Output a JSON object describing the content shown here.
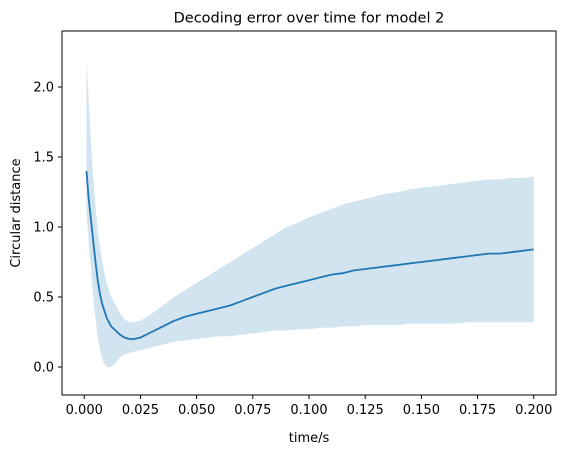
{
  "chart_data": {
    "type": "line",
    "title": "Decoding error over time for model 2",
    "xlabel": "time/s",
    "ylabel": "Circular distance",
    "xlim": [
      -0.0099,
      0.2099
    ],
    "ylim": [
      -0.2,
      2.4
    ],
    "xticks": [
      0.0,
      0.025,
      0.05,
      0.075,
      0.1,
      0.125,
      0.15,
      0.175,
      0.2
    ],
    "xtick_labels": [
      "0.000",
      "0.025",
      "0.050",
      "0.075",
      "0.100",
      "0.125",
      "0.150",
      "0.175",
      "0.200"
    ],
    "yticks": [
      0.0,
      0.5,
      1.0,
      1.5,
      2.0
    ],
    "ytick_labels": [
      "0.0",
      "0.5",
      "1.0",
      "1.5",
      "2.0"
    ],
    "grid": false,
    "line_color": "#1f77b4",
    "band_color": "#1f77b4",
    "band_opacity": 0.2,
    "series": [
      {
        "x": [
          0.001,
          0.002,
          0.003,
          0.004,
          0.005,
          0.006,
          0.007,
          0.008,
          0.009,
          0.01,
          0.012,
          0.014,
          0.016,
          0.018,
          0.02,
          0.022,
          0.025,
          0.03,
          0.035,
          0.04,
          0.045,
          0.05,
          0.055,
          0.06,
          0.065,
          0.07,
          0.075,
          0.08,
          0.085,
          0.09,
          0.095,
          0.1,
          0.105,
          0.11,
          0.115,
          0.12,
          0.125,
          0.13,
          0.135,
          0.14,
          0.145,
          0.15,
          0.155,
          0.16,
          0.165,
          0.17,
          0.175,
          0.18,
          0.185,
          0.19,
          0.195,
          0.2
        ],
        "y": [
          1.4,
          1.2,
          1.05,
          0.9,
          0.75,
          0.62,
          0.52,
          0.45,
          0.4,
          0.35,
          0.29,
          0.26,
          0.23,
          0.21,
          0.2,
          0.2,
          0.21,
          0.25,
          0.29,
          0.33,
          0.36,
          0.38,
          0.4,
          0.42,
          0.44,
          0.47,
          0.5,
          0.53,
          0.56,
          0.58,
          0.6,
          0.62,
          0.64,
          0.66,
          0.67,
          0.69,
          0.7,
          0.71,
          0.72,
          0.73,
          0.74,
          0.75,
          0.76,
          0.77,
          0.78,
          0.79,
          0.8,
          0.81,
          0.81,
          0.82,
          0.83,
          0.84
        ],
        "y_lower": [
          1.1,
          0.9,
          0.7,
          0.5,
          0.35,
          0.22,
          0.12,
          0.06,
          0.02,
          0.0,
          0.0,
          0.03,
          0.07,
          0.09,
          0.1,
          0.11,
          0.12,
          0.14,
          0.16,
          0.18,
          0.19,
          0.2,
          0.21,
          0.22,
          0.22,
          0.23,
          0.24,
          0.25,
          0.26,
          0.26,
          0.27,
          0.27,
          0.28,
          0.28,
          0.29,
          0.29,
          0.3,
          0.3,
          0.3,
          0.3,
          0.31,
          0.31,
          0.31,
          0.31,
          0.31,
          0.32,
          0.32,
          0.32,
          0.32,
          0.32,
          0.32,
          0.32
        ],
        "y_upper": [
          2.2,
          1.9,
          1.6,
          1.35,
          1.15,
          0.98,
          0.85,
          0.75,
          0.67,
          0.6,
          0.5,
          0.44,
          0.38,
          0.34,
          0.32,
          0.32,
          0.33,
          0.38,
          0.44,
          0.5,
          0.55,
          0.6,
          0.65,
          0.7,
          0.75,
          0.8,
          0.85,
          0.9,
          0.95,
          1.0,
          1.03,
          1.07,
          1.1,
          1.13,
          1.16,
          1.18,
          1.2,
          1.22,
          1.24,
          1.25,
          1.27,
          1.28,
          1.29,
          1.3,
          1.31,
          1.32,
          1.33,
          1.34,
          1.34,
          1.35,
          1.35,
          1.36
        ]
      }
    ]
  }
}
